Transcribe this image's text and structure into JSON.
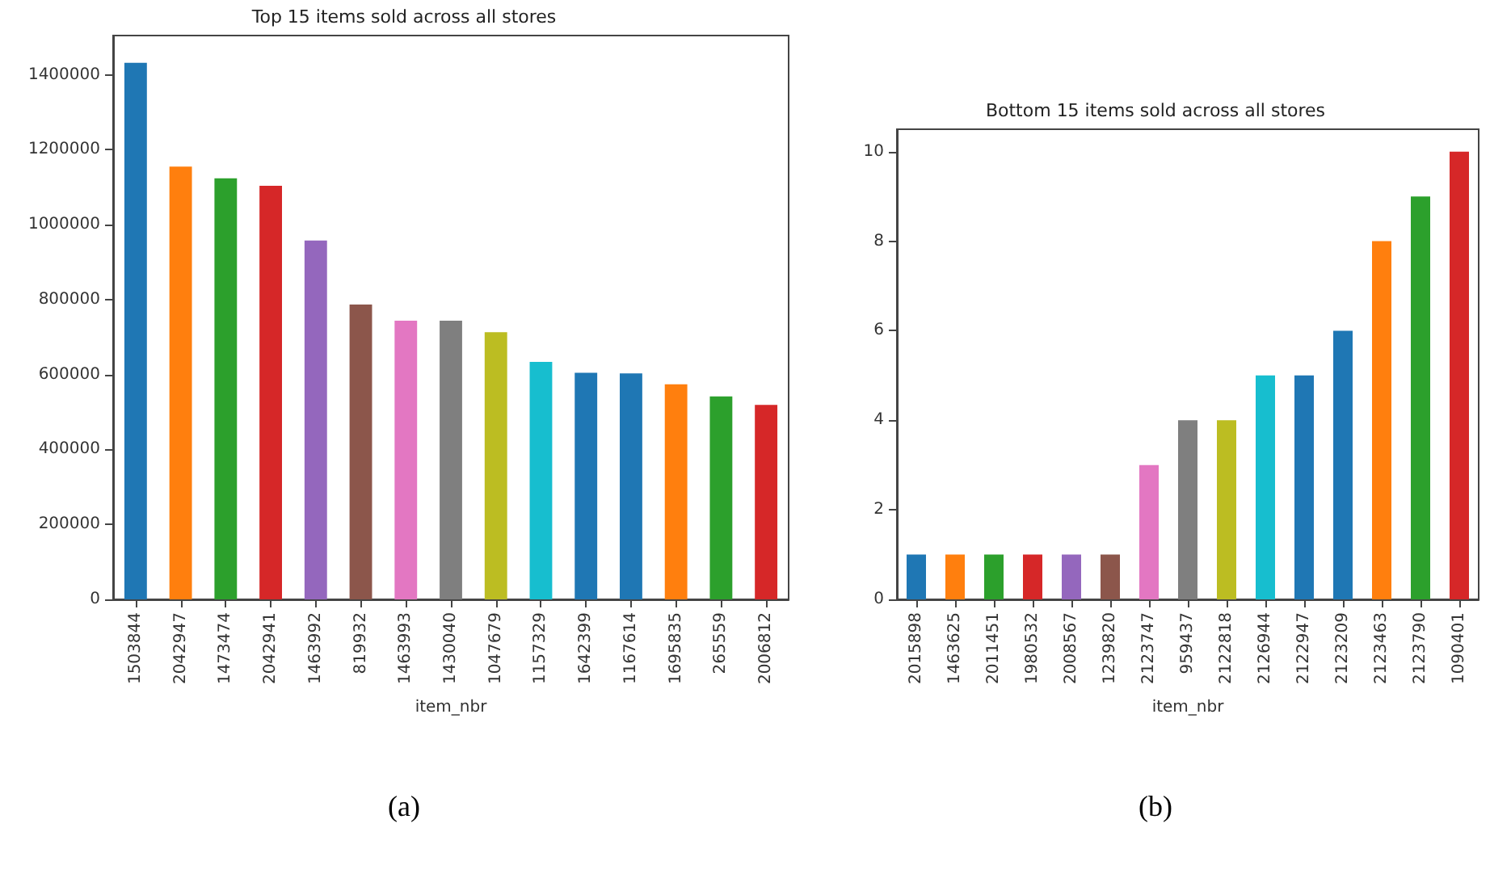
{
  "chart_data": [
    {
      "type": "bar",
      "title": "Top 15 items sold across all stores",
      "xlabel": "item_nbr",
      "annotations": [
        "(a)"
      ],
      "categories": [
        "1503844",
        "2042947",
        "1473474",
        "2042941",
        "1463992",
        "819932",
        "1463993",
        "1430040",
        "1047679",
        "1157329",
        "1642399",
        "1167614",
        "1695835",
        "265559",
        "2006812"
      ],
      "values": [
        1432000,
        1155000,
        1124000,
        1104000,
        958000,
        787000,
        744000,
        744000,
        713000,
        634000,
        605000,
        603000,
        574000,
        542000,
        519000
      ],
      "colors": [
        "#1f77b4",
        "#ff7f0e",
        "#2ca02c",
        "#d62728",
        "#9467bd",
        "#8c564b",
        "#e377c2",
        "#7f7f7f",
        "#bcbd22",
        "#17becf",
        "#1f77b4",
        "#1f77b4",
        "#ff7f0e",
        "#2ca02c",
        "#d62728"
      ],
      "ylim": [
        0,
        1505000
      ],
      "yticks": [
        0,
        200000,
        400000,
        600000,
        800000,
        1000000,
        1200000,
        1400000
      ],
      "grid": false
    },
    {
      "type": "bar",
      "title": "Bottom 15 items sold across all stores",
      "xlabel": "item_nbr",
      "annotations": [
        "(b)"
      ],
      "categories": [
        "2015898",
        "1463625",
        "2011451",
        "1980532",
        "2008567",
        "1239820",
        "2123747",
        "959437",
        "2122818",
        "2126944",
        "2122947",
        "2123209",
        "2123463",
        "2123790",
        "1090401"
      ],
      "values": [
        1,
        1,
        1,
        1,
        1,
        1,
        3,
        4,
        4,
        5,
        5,
        6,
        8,
        9,
        10
      ],
      "colors": [
        "#1f77b4",
        "#ff7f0e",
        "#2ca02c",
        "#d62728",
        "#9467bd",
        "#8c564b",
        "#e377c2",
        "#7f7f7f",
        "#bcbd22",
        "#17becf",
        "#1f77b4",
        "#1f77b4",
        "#ff7f0e",
        "#2ca02c",
        "#d62728"
      ],
      "ylim": [
        0,
        10.5
      ],
      "yticks": [
        0,
        2,
        4,
        6,
        8,
        10
      ],
      "grid": false
    }
  ]
}
